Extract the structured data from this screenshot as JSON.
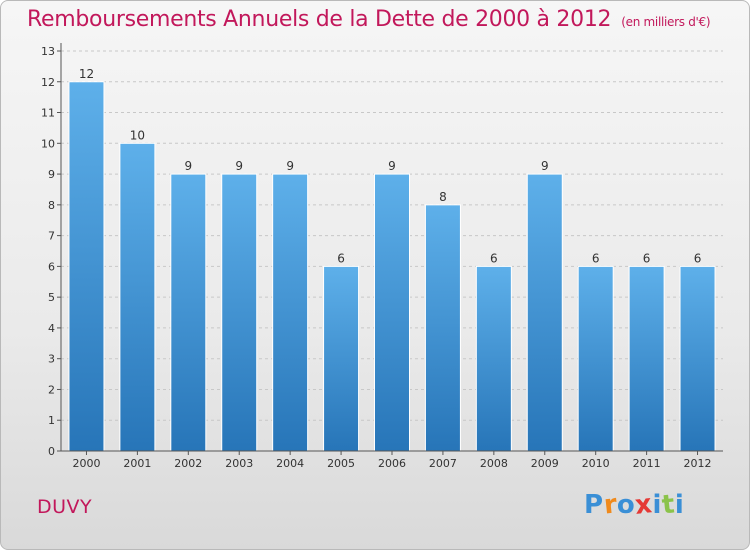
{
  "header": {
    "title": "Remboursements Annuels de la Dette de 2000 à 2012",
    "unit": "(en milliers d'€)"
  },
  "footer": {
    "commune": "DUVY",
    "brand_letters": [
      "P",
      "r",
      "o",
      "x",
      "i",
      "t",
      "i"
    ],
    "brand_colors": [
      "#3a8fd6",
      "#f08a1c",
      "#3a8fd6",
      "#e53935",
      "#3a8fd6",
      "#8bc34a",
      "#3a8fd6"
    ]
  },
  "colors": {
    "bar_light": "#5eb0ea",
    "bar_dark": "#2775b8",
    "title": "#c2185b",
    "axis": "#333333"
  },
  "chart_data": {
    "type": "bar",
    "title": "Remboursements Annuels de la Dette de 2000 à 2012",
    "subtitle": "(en milliers d'€)",
    "categories": [
      "2000",
      "2001",
      "2002",
      "2003",
      "2004",
      "2005",
      "2006",
      "2007",
      "2008",
      "2009",
      "2010",
      "2011",
      "2012"
    ],
    "values": [
      12,
      10,
      9,
      9,
      9,
      6,
      9,
      8,
      6,
      9,
      6,
      6,
      6
    ],
    "ylim": [
      0,
      13
    ],
    "yticks": [
      0,
      1,
      2,
      3,
      4,
      5,
      6,
      7,
      8,
      9,
      10,
      11,
      12,
      13
    ],
    "grid": true,
    "data_labels": true
  }
}
